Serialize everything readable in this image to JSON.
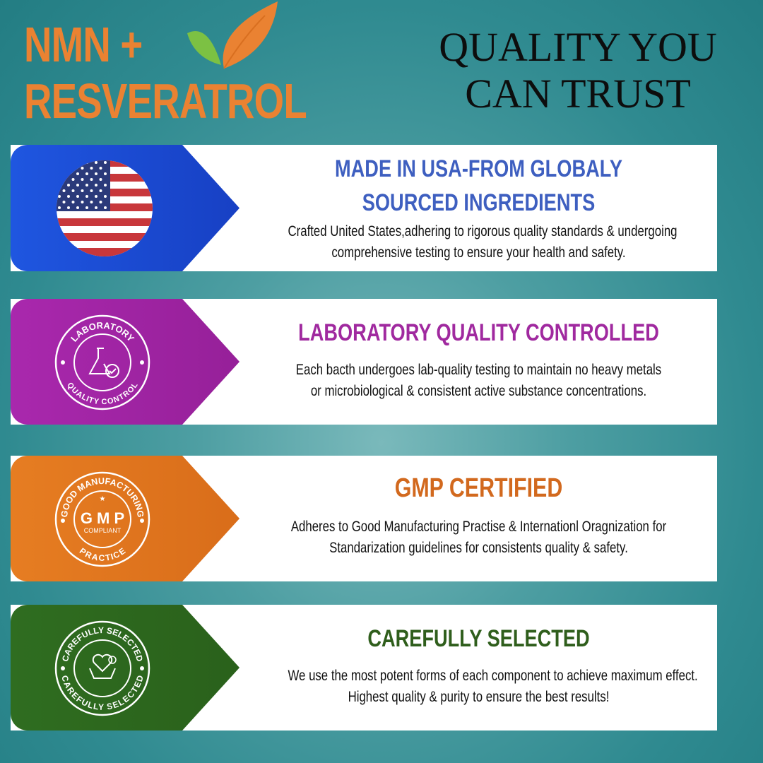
{
  "brand": {
    "line1": "NMN +",
    "line2": "RESVERATROL",
    "color": "#ea8232",
    "icon": "leaf-icon"
  },
  "tagline": {
    "line1": "QUALITY YOU",
    "line2": "CAN TRUST"
  },
  "features": [
    {
      "title1": "MADE IN USA-FROM GLOBALY",
      "title2": "SOURCED INGREDIENTS",
      "desc1": "Crafted United States,adhering to rigorous quality standards & undergoing",
      "desc2": "comprehensive testing to ensure your health and safety.",
      "color": "#1d4fd6",
      "title_color": "#3e5fc0",
      "icon": "us-flag-icon"
    },
    {
      "title1": "LABORATORY QUALITY CONTROLLED",
      "desc1": "Each bacth undergoes lab-quality testing to maintain no heavy metals",
      "desc2": "or microbiological & consistent active substance concentrations.",
      "color": "#a326a8",
      "title_color": "#a0299f",
      "icon": "lab-flask-icon",
      "badge_top": "LABORATORY",
      "badge_bottom": "QUALITY CONTROL"
    },
    {
      "title1": "GMP CERTIFIED",
      "desc1": "Adheres to Good Manufacturing Practise & Internationl Oragnization for",
      "desc2": "Standarization guidelines for consistents quality & safety.",
      "color": "#e4771f",
      "title_color": "#d2691e",
      "icon": "gmp-badge-icon",
      "badge_top": "GOOD MANUFACTURING",
      "badge_mid": "G M P",
      "badge_sub": "COMPLIANT",
      "badge_bottom": "PRACTICE"
    },
    {
      "title1": "CAREFULLY SELECTED",
      "desc1": "We use the most potent forms of each component to achieve maximum effect.",
      "desc2": "Highest quality & purity to ensure the best results!",
      "color": "#2e6b1f",
      "title_color": "#2f5e1c",
      "icon": "heart-hands-icon",
      "badge_top": "CAREFULLY SELECTED",
      "badge_bottom": "CAREFULLY SELECTED"
    }
  ]
}
